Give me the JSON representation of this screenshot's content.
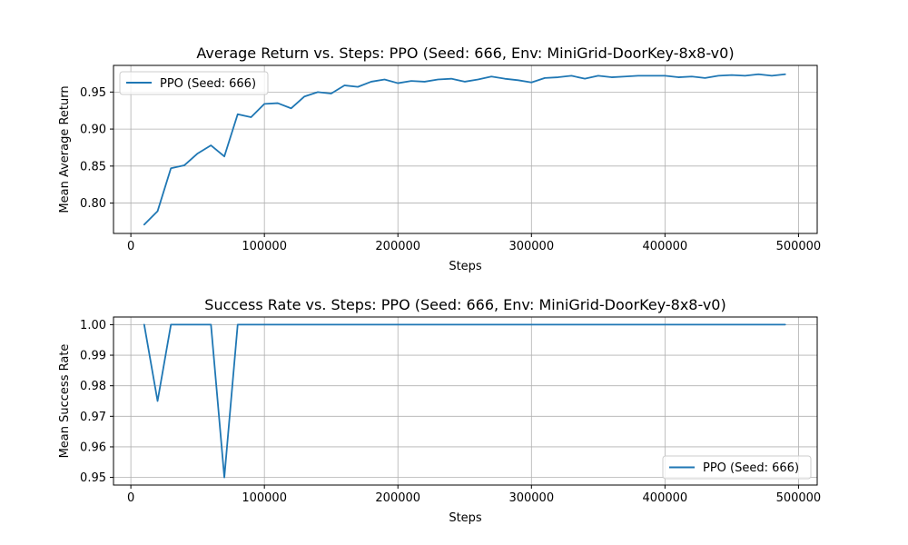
{
  "chart_data": [
    {
      "type": "line",
      "title": "Average Return vs. Steps: PPO (Seed: 666, Env: MiniGrid-DoorKey-8x8-v0)",
      "xlabel": "Steps",
      "ylabel": "Mean Average Return",
      "xlim": [
        -13000,
        514000
      ],
      "ylim": [
        0.759,
        0.986
      ],
      "xticks": [
        0,
        100000,
        200000,
        300000,
        400000,
        500000
      ],
      "xtick_labels": [
        "0",
        "100000",
        "200000",
        "300000",
        "400000",
        "500000"
      ],
      "yticks": [
        0.8,
        0.85,
        0.9,
        0.95
      ],
      "ytick_labels": [
        "0.80",
        "0.85",
        "0.90",
        "0.95"
      ],
      "grid": true,
      "legend_position": "upper left",
      "series": [
        {
          "name": "PPO (Seed: 666)",
          "color": "#1f77b4",
          "x": [
            10000,
            20000,
            30000,
            40000,
            50000,
            60000,
            70000,
            80000,
            90000,
            100000,
            110000,
            120000,
            130000,
            140000,
            150000,
            160000,
            170000,
            180000,
            190000,
            200000,
            210000,
            220000,
            230000,
            240000,
            250000,
            260000,
            270000,
            280000,
            290000,
            300000,
            310000,
            320000,
            330000,
            340000,
            350000,
            360000,
            370000,
            380000,
            390000,
            400000,
            410000,
            420000,
            430000,
            440000,
            450000,
            460000,
            470000,
            480000,
            490000
          ],
          "y": [
            0.771,
            0.789,
            0.847,
            0.851,
            0.867,
            0.878,
            0.863,
            0.92,
            0.916,
            0.934,
            0.935,
            0.928,
            0.944,
            0.95,
            0.948,
            0.959,
            0.957,
            0.964,
            0.967,
            0.962,
            0.965,
            0.964,
            0.967,
            0.968,
            0.964,
            0.967,
            0.971,
            0.968,
            0.966,
            0.963,
            0.969,
            0.97,
            0.972,
            0.968,
            0.972,
            0.97,
            0.971,
            0.972,
            0.972,
            0.972,
            0.97,
            0.971,
            0.969,
            0.972,
            0.973,
            0.972,
            0.974,
            0.972,
            0.974
          ]
        }
      ]
    },
    {
      "type": "line",
      "title": "Success Rate vs. Steps: PPO (Seed: 666, Env: MiniGrid-DoorKey-8x8-v0)",
      "xlabel": "Steps",
      "ylabel": "Mean Success Rate",
      "xlim": [
        -13000,
        514000
      ],
      "ylim": [
        0.9475,
        1.0025
      ],
      "xticks": [
        0,
        100000,
        200000,
        300000,
        400000,
        500000
      ],
      "xtick_labels": [
        "0",
        "100000",
        "200000",
        "300000",
        "400000",
        "500000"
      ],
      "yticks": [
        0.95,
        0.96,
        0.97,
        0.98,
        0.99,
        1.0
      ],
      "ytick_labels": [
        "0.95",
        "0.96",
        "0.97",
        "0.98",
        "0.99",
        "1.00"
      ],
      "grid": true,
      "legend_position": "lower right",
      "series": [
        {
          "name": "PPO (Seed: 666)",
          "color": "#1f77b4",
          "x": [
            10000,
            20000,
            30000,
            40000,
            50000,
            60000,
            70000,
            80000,
            90000,
            100000,
            110000,
            120000,
            130000,
            140000,
            150000,
            160000,
            170000,
            180000,
            190000,
            200000,
            210000,
            220000,
            230000,
            240000,
            250000,
            260000,
            270000,
            280000,
            290000,
            300000,
            310000,
            320000,
            330000,
            340000,
            350000,
            360000,
            370000,
            380000,
            390000,
            400000,
            410000,
            420000,
            430000,
            440000,
            450000,
            460000,
            470000,
            480000,
            490000
          ],
          "y": [
            1.0,
            0.975,
            1.0,
            1.0,
            1.0,
            1.0,
            0.95,
            1.0,
            1.0,
            1.0,
            1.0,
            1.0,
            1.0,
            1.0,
            1.0,
            1.0,
            1.0,
            1.0,
            1.0,
            1.0,
            1.0,
            1.0,
            1.0,
            1.0,
            1.0,
            1.0,
            1.0,
            1.0,
            1.0,
            1.0,
            1.0,
            1.0,
            1.0,
            1.0,
            1.0,
            1.0,
            1.0,
            1.0,
            1.0,
            1.0,
            1.0,
            1.0,
            1.0,
            1.0,
            1.0,
            1.0,
            1.0,
            1.0,
            1.0
          ]
        }
      ]
    }
  ]
}
